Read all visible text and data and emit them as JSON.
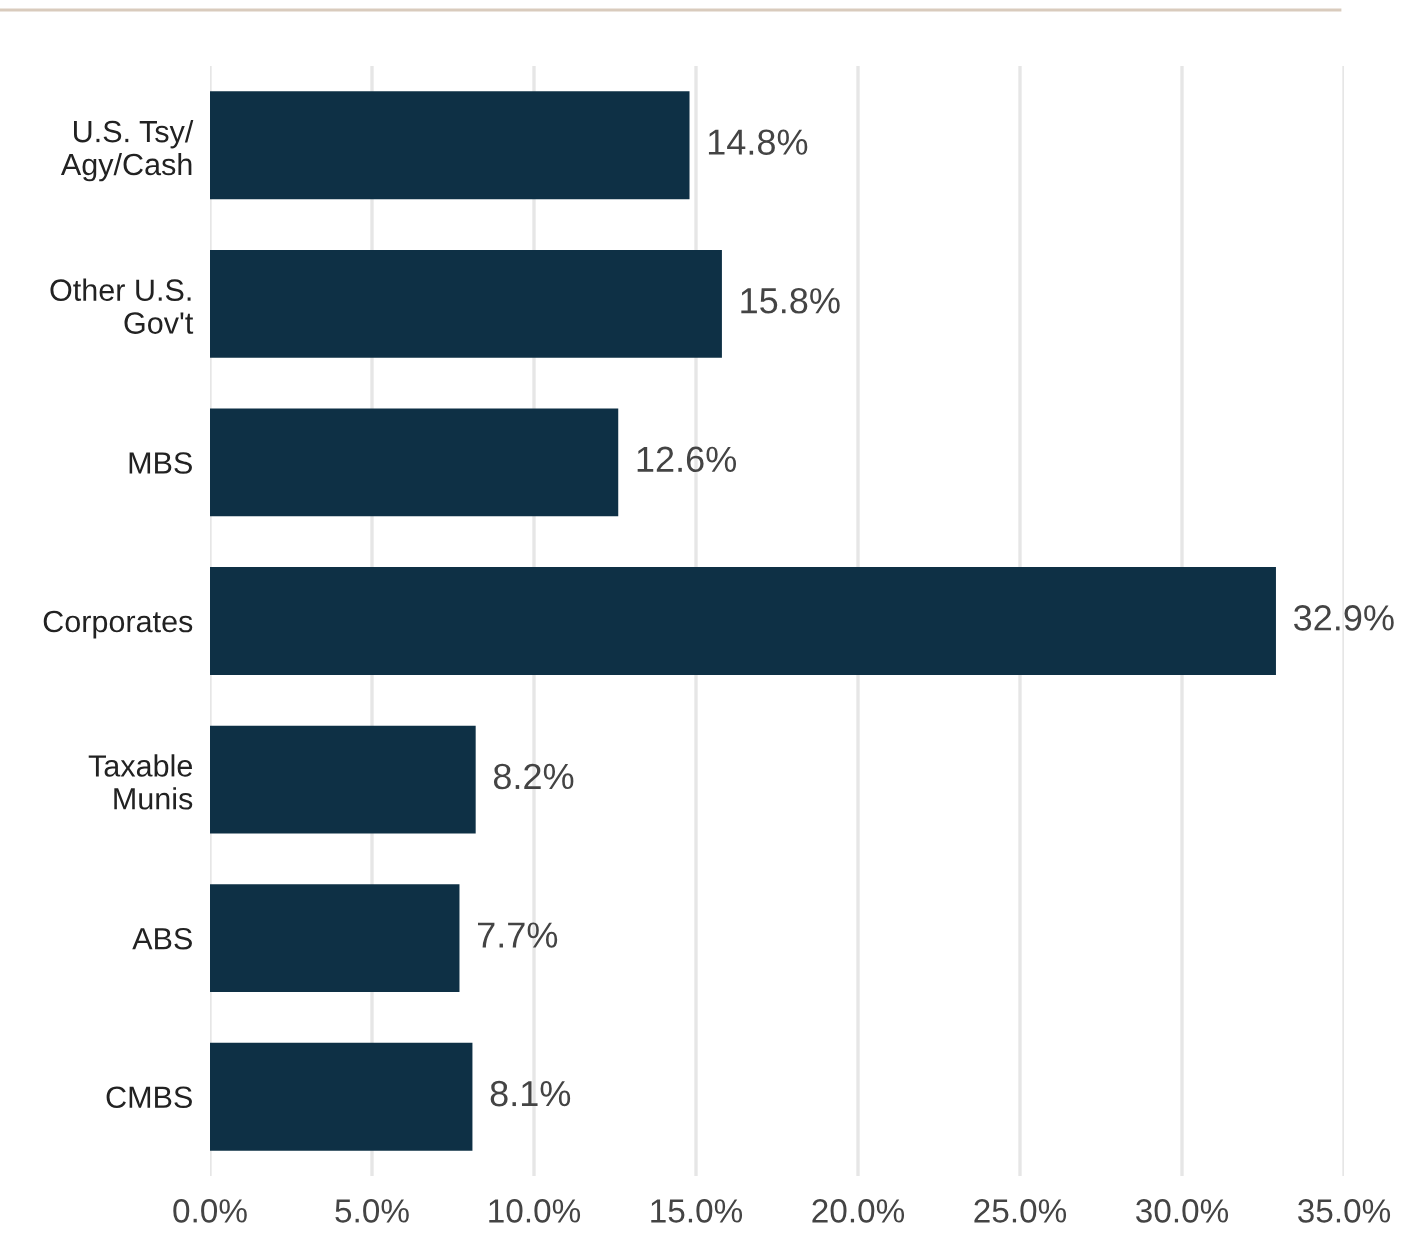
{
  "chart_data": {
    "type": "bar",
    "orientation": "horizontal",
    "categories": [
      "U.S. Tsy/\nAgy/Cash",
      "Other U.S.\nGov't",
      "MBS",
      "Corporates",
      "Taxable\nMunis",
      "ABS",
      "CMBS"
    ],
    "values": [
      14.8,
      15.8,
      12.6,
      32.9,
      8.2,
      7.7,
      8.1
    ],
    "value_labels": [
      "14.8%",
      "15.8%",
      "12.6%",
      "32.9%",
      "8.2%",
      "7.7%",
      "8.1%"
    ],
    "color": "#0e3045",
    "xlim": [
      0,
      35
    ],
    "xticks": [
      {
        "value": 0,
        "label": "0.0%"
      },
      {
        "value": 5,
        "label": "5.0%"
      },
      {
        "value": 10,
        "label": "10.0%"
      },
      {
        "value": 15,
        "label": "15.0%"
      },
      {
        "value": 20,
        "label": "20.0%"
      },
      {
        "value": 25,
        "label": "25.0%"
      },
      {
        "value": 30,
        "label": "30.0%"
      },
      {
        "value": 35,
        "label": "35.0%"
      }
    ],
    "grid": "x"
  }
}
